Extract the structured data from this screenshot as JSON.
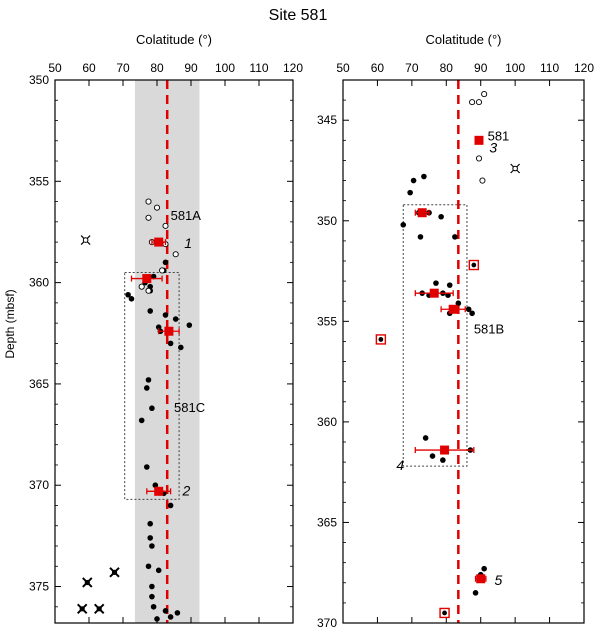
{
  "title": "Site 581",
  "ylabel": "Depth (mbsf)",
  "colors": {
    "red": "#e00000",
    "shade": "#d9d9d9",
    "black": "#000000"
  },
  "chart_data": [
    {
      "type": "scatter",
      "xlabel": "Colatitude (°)",
      "xlim": [
        50,
        120
      ],
      "xticks": [
        50,
        60,
        70,
        80,
        90,
        100,
        110,
        120
      ],
      "ylim": [
        350,
        376.8
      ],
      "yticks": [
        350,
        355,
        360,
        365,
        370,
        375
      ],
      "reference_colatitude": 83,
      "shaded_band": [
        73.5,
        92.5
      ],
      "box": {
        "x": [
          70.5,
          86.5
        ],
        "y": [
          359.5,
          370.7
        ]
      },
      "labels": [
        {
          "text": "581A",
          "x": 84,
          "y": 356.7,
          "style": "normal"
        },
        {
          "text": "1",
          "x": 88,
          "y": 358.1,
          "style": "italic"
        },
        {
          "text": "581C",
          "x": 85,
          "y": 366.2,
          "style": "normal"
        },
        {
          "text": "2",
          "x": 87.5,
          "y": 370.3,
          "style": "italic"
        }
      ],
      "open_circles": [
        {
          "x": 77.5,
          "y": 356.0
        },
        {
          "x": 80,
          "y": 356.3
        },
        {
          "x": 77.5,
          "y": 356.8
        },
        {
          "x": 82.5,
          "y": 357.2
        },
        {
          "x": 78.5,
          "y": 358.0
        },
        {
          "x": 82.5,
          "y": 358.1
        },
        {
          "x": 85.5,
          "y": 358.6
        },
        {
          "x": 81.5,
          "y": 359.4
        },
        {
          "x": 75.5,
          "y": 360.2
        },
        {
          "x": 77.5,
          "y": 360.4
        }
      ],
      "filled_circles": [
        {
          "x": 82.5,
          "y": 359.0
        },
        {
          "x": 82,
          "y": 359.4
        },
        {
          "x": 79,
          "y": 359.7
        },
        {
          "x": 76.5,
          "y": 360.0
        },
        {
          "x": 78,
          "y": 360.2
        },
        {
          "x": 78,
          "y": 360.4
        },
        {
          "x": 71.5,
          "y": 360.6
        },
        {
          "x": 72.5,
          "y": 360.8
        },
        {
          "x": 78,
          "y": 361.4
        },
        {
          "x": 82.5,
          "y": 361.6
        },
        {
          "x": 85.5,
          "y": 361.8
        },
        {
          "x": 80.5,
          "y": 362.2
        },
        {
          "x": 81,
          "y": 362.4
        },
        {
          "x": 89.5,
          "y": 362.1
        },
        {
          "x": 84,
          "y": 363.0
        },
        {
          "x": 87,
          "y": 363.2
        },
        {
          "x": 77.5,
          "y": 364.8
        },
        {
          "x": 77,
          "y": 365.2
        },
        {
          "x": 78.5,
          "y": 366.2
        },
        {
          "x": 75.5,
          "y": 366.8
        },
        {
          "x": 77,
          "y": 369.1
        },
        {
          "x": 79.5,
          "y": 370.0
        },
        {
          "x": 82,
          "y": 370.4
        },
        {
          "x": 84,
          "y": 371.0
        },
        {
          "x": 78,
          "y": 371.9
        },
        {
          "x": 78,
          "y": 372.6
        },
        {
          "x": 78.5,
          "y": 373.0
        },
        {
          "x": 77.5,
          "y": 374.0
        },
        {
          "x": 80.5,
          "y": 374.2
        },
        {
          "x": 78.5,
          "y": 375.0
        },
        {
          "x": 78.5,
          "y": 375.5
        },
        {
          "x": 79,
          "y": 376.0
        },
        {
          "x": 82.5,
          "y": 376.2
        },
        {
          "x": 86,
          "y": 376.3
        },
        {
          "x": 80,
          "y": 376.6
        },
        {
          "x": 84,
          "y": 376.5
        }
      ],
      "stars_outline": [
        {
          "x": 59,
          "y": 357.9
        }
      ],
      "stars_filled": [
        {
          "x": 67.5,
          "y": 374.3
        },
        {
          "x": 59.5,
          "y": 374.8
        },
        {
          "x": 58,
          "y": 376.1
        },
        {
          "x": 63,
          "y": 376.1
        }
      ],
      "means": [
        {
          "x": 80.5,
          "y": 358.0,
          "err": 2
        },
        {
          "x": 77,
          "y": 359.8,
          "err": 4.5
        },
        {
          "x": 83.5,
          "y": 362.4,
          "err": 3
        },
        {
          "x": 80.5,
          "y": 370.3,
          "err": 3.5
        }
      ],
      "mean_boxes": []
    },
    {
      "type": "scatter",
      "xlabel": "Colatitude (°)",
      "xlim": [
        50,
        120
      ],
      "xticks": [
        50,
        60,
        70,
        80,
        90,
        100,
        110,
        120
      ],
      "ylim": [
        343,
        370
      ],
      "yticks": [
        345,
        350,
        355,
        360,
        365,
        370
      ],
      "reference_colatitude": 83.5,
      "shaded_band": null,
      "box": {
        "x": [
          67.5,
          86
        ],
        "y": [
          349.2,
          362.2
        ]
      },
      "labels": [
        {
          "text": "581",
          "x": 92,
          "y": 345.8,
          "style": "normal"
        },
        {
          "text": "3",
          "x": 92.5,
          "y": 346.4,
          "style": "italic"
        },
        {
          "text": "581B",
          "x": 88,
          "y": 355.4,
          "style": "normal"
        },
        {
          "text": "4",
          "x": 65.5,
          "y": 362.2,
          "style": "italic"
        },
        {
          "text": "5",
          "x": 94,
          "y": 367.9,
          "style": "italic"
        }
      ],
      "open_circles": [
        {
          "x": 91,
          "y": 343.7
        },
        {
          "x": 87.5,
          "y": 344.1
        },
        {
          "x": 89.5,
          "y": 344.1
        },
        {
          "x": 89.5,
          "y": 346.9
        },
        {
          "x": 90.5,
          "y": 348.0
        }
      ],
      "filled_circles": [
        {
          "x": 73.5,
          "y": 347.8
        },
        {
          "x": 70.5,
          "y": 348.0
        },
        {
          "x": 69.5,
          "y": 348.6
        },
        {
          "x": 72,
          "y": 349.6
        },
        {
          "x": 75,
          "y": 349.6
        },
        {
          "x": 78.5,
          "y": 349.8
        },
        {
          "x": 67.5,
          "y": 350.2
        },
        {
          "x": 72.5,
          "y": 350.8
        },
        {
          "x": 82.5,
          "y": 350.8
        },
        {
          "x": 77,
          "y": 353.1
        },
        {
          "x": 81,
          "y": 353.2
        },
        {
          "x": 73,
          "y": 353.6
        },
        {
          "x": 75,
          "y": 353.7
        },
        {
          "x": 79,
          "y": 353.6
        },
        {
          "x": 80.5,
          "y": 353.7
        },
        {
          "x": 83.5,
          "y": 354.1
        },
        {
          "x": 81,
          "y": 354.6
        },
        {
          "x": 86.5,
          "y": 354.4
        },
        {
          "x": 87.5,
          "y": 354.6
        },
        {
          "x": 74,
          "y": 360.8
        },
        {
          "x": 76,
          "y": 361.7
        },
        {
          "x": 79,
          "y": 361.9
        },
        {
          "x": 87,
          "y": 361.4
        },
        {
          "x": 91,
          "y": 367.3
        },
        {
          "x": 90,
          "y": 367.6
        },
        {
          "x": 88.5,
          "y": 368.5
        }
      ],
      "stars_outline": [
        {
          "x": 100,
          "y": 347.4
        }
      ],
      "stars_filled": [],
      "means": [
        {
          "x": 89.5,
          "y": 346.0,
          "err": 1
        },
        {
          "x": 73,
          "y": 349.6,
          "err": 2
        },
        {
          "x": 76.5,
          "y": 353.6,
          "err": 5.5
        },
        {
          "x": 82,
          "y": 354.4,
          "err": 3.5
        },
        {
          "x": 79.5,
          "y": 361.4,
          "err": 8.5
        },
        {
          "x": 90,
          "y": 367.8,
          "err": 1.5
        }
      ],
      "mean_boxes": [
        {
          "x": 61,
          "y": 355.9
        },
        {
          "x": 88,
          "y": 352.2
        },
        {
          "x": 79.5,
          "y": 369.5
        }
      ]
    }
  ]
}
